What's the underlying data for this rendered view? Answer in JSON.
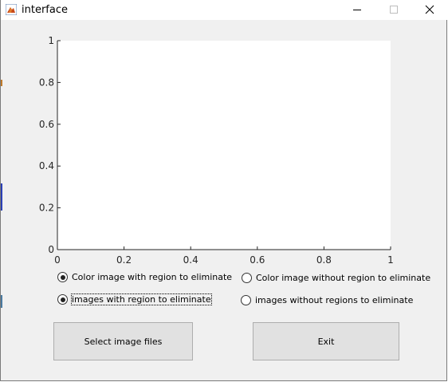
{
  "window": {
    "title": "interface",
    "icon": "matlab-figure-icon",
    "controls": [
      "minimize-icon",
      "maximize-icon",
      "close-icon"
    ]
  },
  "axes": {
    "x_ticks": [
      "0",
      "0.2",
      "0.4",
      "0.6",
      "0.8",
      "1"
    ],
    "y_ticks": [
      "0",
      "0.2",
      "0.4",
      "0.6",
      "0.8",
      "1"
    ]
  },
  "chart_data": {
    "type": "line",
    "series": [],
    "xlim": [
      0,
      1
    ],
    "ylim": [
      0,
      1
    ],
    "grid": false
  },
  "radios": {
    "color_with": {
      "label": "Color image with region to eliminate",
      "selected": true
    },
    "color_without": {
      "label": "Color image without region to eliminate",
      "selected": false
    },
    "images_with": {
      "label": "images with region to eliminate",
      "selected": true
    },
    "images_without": {
      "label": "images without regions to eliminate",
      "selected": false
    }
  },
  "buttons": {
    "select_label": "Select image files",
    "exit_label": "Exit"
  },
  "colors": {
    "window_bg": "#f0f0f0",
    "axes_bg": "#ffffff",
    "button_bg": "#e1e1e1"
  }
}
